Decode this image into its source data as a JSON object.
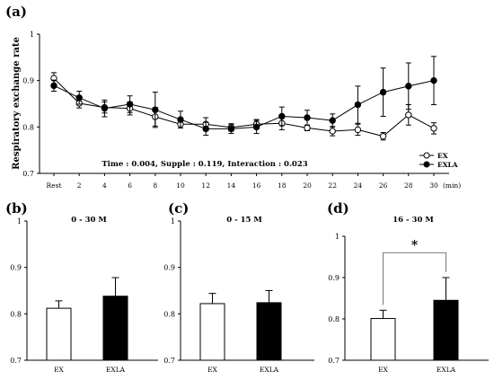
{
  "chart_data": [
    {
      "panel": "(a)",
      "type": "line",
      "ylabel": "Respiratory exchange rate",
      "ylim": [
        0.7,
        1
      ],
      "yticks": [
        "0.7",
        "0.8",
        "0.9",
        "1"
      ],
      "categories": [
        "Rest",
        "2",
        "4",
        "6",
        "8",
        "10",
        "12",
        "14",
        "16",
        "18",
        "20",
        "22",
        "24",
        "26",
        "28",
        "30"
      ],
      "x_unit": "(min)",
      "annotation": "Time : 0.004,  Supple : 0.119,  Interaction : 0.023",
      "legend_position": "bottom-right",
      "series": [
        {
          "name": "EX",
          "marker": "open-circle",
          "values": [
            0.905,
            0.851,
            0.842,
            0.84,
            0.822,
            0.806,
            0.806,
            0.799,
            0.806,
            0.808,
            0.798,
            0.791,
            0.794,
            0.78,
            0.826,
            0.797
          ],
          "errors": [
            0.012,
            0.01,
            0.012,
            0.014,
            0.02,
            0.008,
            0.014,
            0.008,
            0.01,
            0.014,
            0.006,
            0.01,
            0.012,
            0.008,
            0.022,
            0.012
          ]
        },
        {
          "name": "EXLA",
          "marker": "filled-circle",
          "values": [
            0.889,
            0.863,
            0.84,
            0.849,
            0.837,
            0.816,
            0.796,
            0.796,
            0.8,
            0.823,
            0.82,
            0.814,
            0.848,
            0.875,
            0.888,
            0.9
          ],
          "errors": [
            0.012,
            0.014,
            0.018,
            0.018,
            0.038,
            0.018,
            0.014,
            0.01,
            0.014,
            0.02,
            0.016,
            0.014,
            0.04,
            0.052,
            0.05,
            0.052
          ]
        }
      ]
    },
    {
      "panel": "(b)",
      "type": "bar",
      "title": "0 - 30 M",
      "ylim": [
        0.7,
        1
      ],
      "yticks": [
        "0.7",
        "0.8",
        "0.9",
        "1"
      ],
      "categories": [
        "EX",
        "EXLA"
      ],
      "values": [
        0.812,
        0.838
      ],
      "errors": [
        0.016,
        0.04
      ],
      "fills": [
        "#ffffff",
        "#000000"
      ]
    },
    {
      "panel": "(c)",
      "type": "bar",
      "title": "0 - 15 M",
      "ylim": [
        0.7,
        1
      ],
      "yticks": [
        "0.7",
        "0.8",
        "0.9",
        "1"
      ],
      "categories": [
        "EX",
        "EXLA"
      ],
      "values": [
        0.822,
        0.824
      ],
      "errors": [
        0.022,
        0.026
      ],
      "fills": [
        "#ffffff",
        "#000000"
      ]
    },
    {
      "panel": "(d)",
      "type": "bar",
      "title": "16 - 30 M",
      "ylim": [
        0.7,
        1
      ],
      "yticks": [
        "0.7",
        "0.8",
        "0.9",
        "1"
      ],
      "categories": [
        "EX",
        "EXLA"
      ],
      "values": [
        0.801,
        0.845
      ],
      "errors": [
        0.02,
        0.055
      ],
      "fills": [
        "#ffffff",
        "#000000"
      ],
      "significance": "*"
    }
  ]
}
